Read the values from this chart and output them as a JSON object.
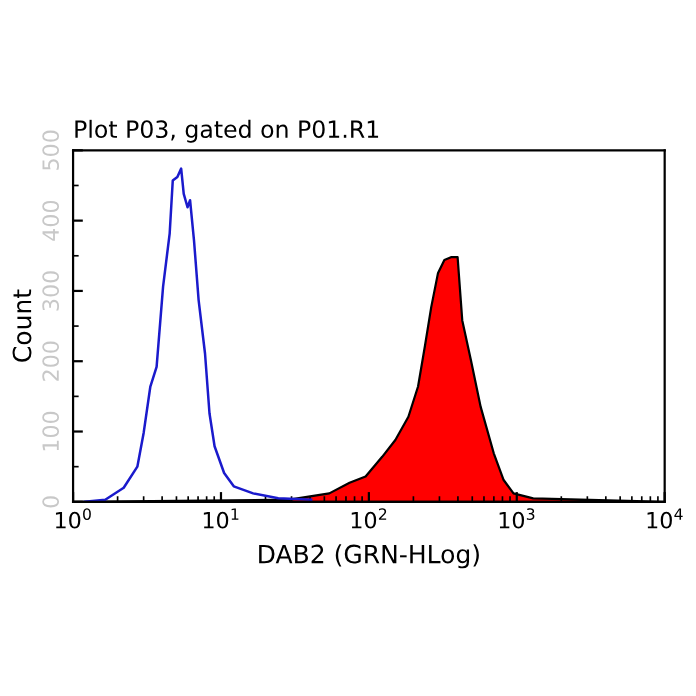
{
  "chart_data": {
    "type": "line",
    "title": "Plot P03, gated on P01.R1",
    "xlabel": "DAB2 (GRN-HLog)",
    "ylabel": "Count",
    "log": "x",
    "xlim": [
      1,
      10000
    ],
    "xticks": [
      {
        "value": 1,
        "label": "10$^{0}$"
      },
      {
        "value": 10,
        "label": "10$^{1}$"
      },
      {
        "value": 100,
        "label": "10$^{2}$"
      },
      {
        "value": 1000,
        "label": "10$^{3}$"
      },
      {
        "value": 10000,
        "label": "10$^{4}$"
      }
    ],
    "ylim": [
      0,
      500
    ],
    "yticks": [
      0,
      100,
      200,
      300,
      400,
      500
    ],
    "grid": false,
    "series": [
      {
        "color": "#1a1acc",
        "x": [
          1.2,
          1.65,
          2.2,
          2.72,
          3.0,
          3.33,
          3.67,
          4.06,
          4.5,
          4.72,
          5.07,
          5.38,
          5.6,
          5.94,
          6.18,
          6.57,
          7.06,
          7.8,
          8.36,
          9.05,
          10.5,
          12.2,
          16.5,
          24.4,
          40.7
        ],
        "values": [
          0,
          3,
          20,
          50,
          98,
          164,
          192,
          306,
          382,
          457,
          462,
          474,
          438,
          419,
          429,
          372,
          287,
          211,
          126,
          79,
          41,
          22,
          12,
          5,
          3
        ]
      },
      {
        "type": "area",
        "color": "#ff0000",
        "x": [
          1,
          29,
          54,
          74,
          95,
          123,
          151,
          185,
          215,
          239,
          264,
          293,
          324,
          359,
          398,
          428,
          489,
          570,
          699,
          815,
          950,
          1291,
          10000
        ],
        "values": [
          0,
          3,
          12,
          27,
          36,
          64,
          88,
          121,
          164,
          221,
          277,
          325,
          344,
          348,
          348,
          258,
          202,
          135,
          69,
          31,
          12,
          5,
          0
        ]
      }
    ]
  }
}
